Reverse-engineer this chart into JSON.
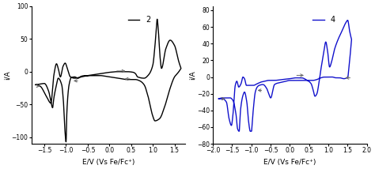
{
  "plot1": {
    "xlim": [
      -1.8,
      1.75
    ],
    "ylim": [
      -110,
      100
    ],
    "xticks": [
      -1.5,
      -1.0,
      -0.5,
      0.0,
      0.5,
      1.0,
      1.5
    ],
    "yticks": [
      -100,
      -50,
      0,
      50,
      100
    ],
    "xlabel": "E/V (Vs Fe/Fc⁺)",
    "ylabel": "i/A",
    "label": "2",
    "color": "black",
    "linewidth": 1.0
  },
  "plot2": {
    "xlim": [
      -2.0,
      2.0
    ],
    "ylim": [
      -80,
      85
    ],
    "xticks": [
      -2.0,
      -1.5,
      -1.0,
      -0.5,
      0.0,
      0.5,
      1.0,
      1.5,
      2.0
    ],
    "yticks": [
      -80,
      -60,
      -40,
      -20,
      0,
      20,
      40,
      60,
      80
    ],
    "xlabel": "E/V (Vs Fe/Fc⁺)",
    "ylabel": "i/A",
    "label": "4",
    "color": "#1111cc",
    "linewidth": 1.0
  },
  "figsize": [
    4.74,
    2.14
  ],
  "dpi": 100
}
